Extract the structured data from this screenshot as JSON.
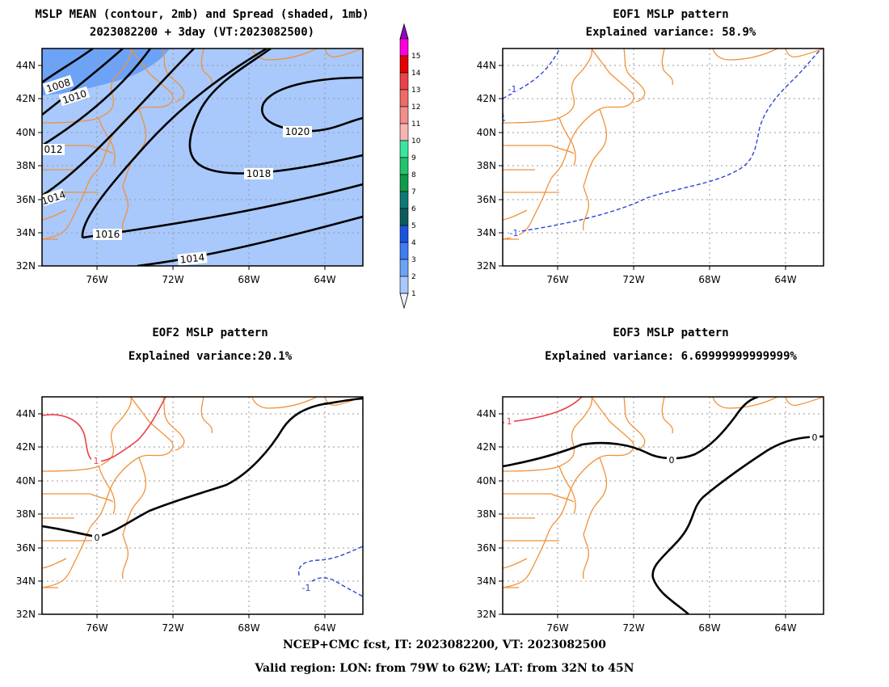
{
  "panels": {
    "p1": {
      "title1": "MSLP MEAN (contour, 2mb) and Spread (shaded, 1mb)",
      "title2": "2023082200 + 3day (VT:2023082500)"
    },
    "p2": {
      "title1": "EOF1 MSLP pattern",
      "title2": "Explained variance: 58.9%"
    },
    "p3": {
      "title1": "EOF2 MSLP pattern",
      "title2": "Explained variance:20.1%"
    },
    "p4": {
      "title1": "EOF3 MSLP pattern",
      "title2": "Explained variance: 6.69999999999999%"
    }
  },
  "footer": {
    "line1": "NCEP+CMC fcst, IT: 2023082200, VT: 2023082500",
    "line2": "Valid region: LON: from 79W to 62W; LAT: from 32N to 45N"
  },
  "colors": {
    "coast": "#f0923a",
    "spread1": "#a9c8fb",
    "spread2": "#6da3f6",
    "positive": "#e8424a",
    "negative": "#2a43d8",
    "zero": "#000000"
  },
  "chart_data": [
    {
      "type": "contour",
      "panel": "p1",
      "x_ticks": [
        "76W",
        "72W",
        "68W",
        "64W"
      ],
      "y_ticks": [
        "32N",
        "34N",
        "36N",
        "38N",
        "40N",
        "42N",
        "44N"
      ],
      "xlim": [
        -78.5,
        -62
      ],
      "ylim": [
        32,
        45
      ],
      "contour_labels": [
        "1008",
        "1010",
        "012",
        "1014",
        "1016",
        "1018",
        "1020",
        "1014"
      ],
      "spread_shading": {
        "min": 2,
        "max": 3
      },
      "colorbar": {
        "levels": [
          "1",
          "2",
          "3",
          "4",
          "5",
          "6",
          "7",
          "8",
          "9",
          "10",
          "11",
          "12",
          "13",
          "14",
          "15"
        ],
        "colors": [
          "#f2f5ff",
          "#a9c8fb",
          "#6da3f6",
          "#3d7ef0",
          "#1a55e0",
          "#0b5d5d",
          "#0d7a73",
          "#0f9b4a",
          "#22c46b",
          "#39e6a0",
          "#f7b5b1",
          "#f28f8a",
          "#ef6a68",
          "#e8424a",
          "#e60000",
          "#ff00dd",
          "#9900cc"
        ]
      }
    },
    {
      "type": "contour",
      "panel": "p2",
      "x_ticks": [
        "76W",
        "72W",
        "68W",
        "64W"
      ],
      "y_ticks": [
        "32N",
        "34N",
        "36N",
        "38N",
        "40N",
        "42N",
        "44N"
      ],
      "contour_labels": [
        "-1",
        "-1"
      ]
    },
    {
      "type": "contour",
      "panel": "p3",
      "x_ticks": [
        "76W",
        "72W",
        "68W",
        "64W"
      ],
      "y_ticks": [
        "32N",
        "34N",
        "36N",
        "38N",
        "40N",
        "42N",
        "44N"
      ],
      "contour_labels": [
        "1",
        "0",
        "-1"
      ]
    },
    {
      "type": "contour",
      "panel": "p4",
      "x_ticks": [
        "76W",
        "72W",
        "68W",
        "64W"
      ],
      "y_ticks": [
        "32N",
        "34N",
        "36N",
        "38N",
        "40N",
        "42N",
        "44N"
      ],
      "contour_labels": [
        "1",
        "0",
        "0"
      ]
    }
  ]
}
